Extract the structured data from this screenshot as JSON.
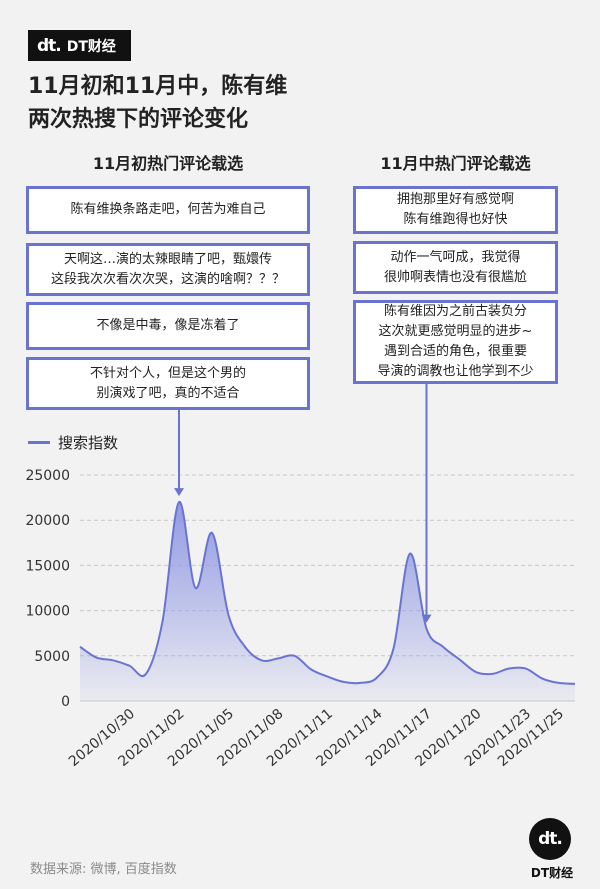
{
  "brand": {
    "mark": "dt.",
    "name": "DT财经"
  },
  "title_lines": [
    "11月初和11月中，陈有维",
    "两次热搜下的评论变化"
  ],
  "left_column": {
    "title": "11月初热门评论载选",
    "comments": [
      "陈有维换条路走吧，何苦为难自己",
      "天啊这…演的太辣眼睛了吧，甄嬛传\n这段我次次看次次哭，这演的啥啊？？？",
      "不像是中毒，像是冻着了",
      "不针对个人，但是这个男的\n别演戏了吧，真的不适合"
    ]
  },
  "right_column": {
    "title": "11月中热门评论载选",
    "comments": [
      "拥抱那里好有感觉啊\n陈有维跑得也好快",
      "动作一气呵成，我觉得\n很帅啊表情也没有很尴尬",
      "陈有维因为之前古装负分\n这次就更感觉明显的进步~\n遇到合适的角色，很重要\n导演的调教也让他学到不少"
    ]
  },
  "source": "数据来源: 微博, 百度指数",
  "colors": {
    "line": "#6a74d0",
    "fill_top": "#8c95e2",
    "box_border": "#6a74d0"
  },
  "chart_data": {
    "type": "area",
    "series": [
      {
        "name": "搜索指数",
        "dates": [
          "2020-10-27",
          "2020-10-28",
          "2020-10-29",
          "2020-10-30",
          "2020-10-31",
          "2020-11-01",
          "2020-11-02",
          "2020-11-03",
          "2020-11-04",
          "2020-11-05",
          "2020-11-06",
          "2020-11-07",
          "2020-11-08",
          "2020-11-09",
          "2020-11-10",
          "2020-11-11",
          "2020-11-12",
          "2020-11-13",
          "2020-11-14",
          "2020-11-15",
          "2020-11-16",
          "2020-11-17",
          "2020-11-18",
          "2020-11-19",
          "2020-11-20",
          "2020-11-21",
          "2020-11-22",
          "2020-11-23",
          "2020-11-24",
          "2020-11-25",
          "2020-11-26"
        ],
        "values": [
          6000,
          4800,
          4500,
          3900,
          3000,
          8800,
          22000,
          12500,
          18600,
          9500,
          6000,
          4500,
          4700,
          5000,
          3500,
          2700,
          2100,
          2000,
          2600,
          5800,
          16300,
          8000,
          6000,
          4600,
          3200,
          3000,
          3600,
          3600,
          2500,
          2000,
          1900
        ]
      }
    ],
    "x_tick_labels": [
      "2020/10/30",
      "2020/11/02",
      "2020/11/05",
      "2020/11/08",
      "2020/11/11",
      "2020/11/14",
      "2020/11/17",
      "2020/11/20",
      "2020/11/23",
      "2020/11/25"
    ],
    "x_tick_dates": [
      "2020-10-30",
      "2020-11-02",
      "2020-11-05",
      "2020-11-08",
      "2020-11-11",
      "2020-11-14",
      "2020-11-17",
      "2020-11-20",
      "2020-11-23",
      "2020-11-25"
    ],
    "y_ticks": [
      0,
      5000,
      10000,
      15000,
      20000,
      25000
    ],
    "ylim": [
      0,
      25000
    ],
    "grid": "horizontal dashed",
    "legend_placement": "top-left",
    "annotations": [
      {
        "date": "2020-11-02",
        "target": "left_column"
      },
      {
        "date": "2020-11-17",
        "target": "right_column"
      }
    ]
  }
}
